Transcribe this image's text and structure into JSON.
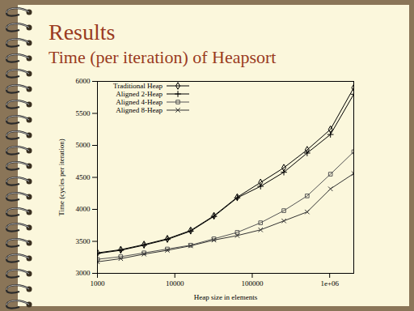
{
  "chart_data": {
    "type": "line",
    "title": "Results",
    "subtitle": "Time (per iteration) of Heapsort",
    "x_label": "Heap size in elements",
    "y_label": "Time (cycles per iteration)",
    "log": "x",
    "grid": false,
    "legend": "top-left",
    "x": [
      1000,
      2000,
      4000,
      8000,
      16000,
      32000,
      64000,
      128000,
      256000,
      512000,
      1024000,
      2048000
    ],
    "xlim": [
      1000,
      2048000
    ],
    "xticks": [
      1000,
      10000,
      100000,
      {
        "value": 1000000,
        "label": "1e+06"
      }
    ],
    "ylim": [
      3000,
      6000
    ],
    "yticks": [
      3000,
      3500,
      4000,
      4500,
      5000,
      5500,
      6000
    ],
    "series": [
      {
        "name": "Traditional Heap",
        "color": "#000000",
        "marker": "diamond",
        "values": [
          3320,
          3370,
          3450,
          3540,
          3670,
          3900,
          4190,
          4420,
          4650,
          4930,
          5250,
          5900
        ]
      },
      {
        "name": "Aligned 2-Heap",
        "color": "#000000",
        "marker": "plus",
        "values": [
          3310,
          3360,
          3440,
          3530,
          3660,
          3890,
          4180,
          4360,
          4580,
          4880,
          5170,
          5800
        ]
      },
      {
        "name": "Aligned 4-Heap",
        "color": "#555555",
        "marker": "square",
        "values": [
          3220,
          3260,
          3320,
          3380,
          3440,
          3540,
          3640,
          3790,
          3980,
          4210,
          4550,
          4900
        ]
      },
      {
        "name": "Aligned 8-Heap",
        "color": "#333333",
        "marker": "times",
        "values": [
          3180,
          3230,
          3300,
          3360,
          3430,
          3520,
          3590,
          3680,
          3820,
          3960,
          4320,
          4560
        ]
      }
    ]
  }
}
